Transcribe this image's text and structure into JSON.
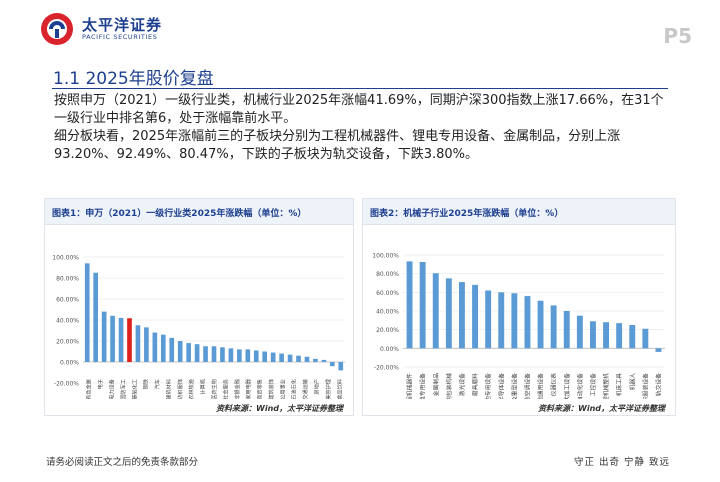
{
  "header": {
    "company_cn": "太平洋证券",
    "company_en": "PACIFIC SECURITIES",
    "page_number": "P5",
    "brand_color": "#1d3f8f",
    "accent_color": "#d9232d"
  },
  "section": {
    "title": "1.1 2025年股价复盘"
  },
  "paragraphs": {
    "p1": "按照申万（2021）一级行业类，机械行业2025年涨幅41.69%，同期沪深300指数上涨17.66%，在31个一级行业中排名第6，处于涨幅靠前水平。",
    "p2": "细分板块看，2025年涨幅前三的子板块分别为工程机械器件、锂电专用设备、金属制品，分别上涨93.20%、92.49%、80.47%，下跌的子板块为轨交设备，下跌3.80%。"
  },
  "figure1": {
    "title": "图表1：申万（2021）一级行业类2025年涨跌幅（单位：%）",
    "source": "资料来源：Wind，太平洋证券整理"
  },
  "figure2": {
    "title": "图表2：机械子行业2025年涨跌幅（单位：%）",
    "source": "资料来源：Wind，太平洋证券整理"
  },
  "chart_data": [
    {
      "type": "bar",
      "title": "图表1：申万（2021）一级行业类2025年涨跌幅（单位：%）",
      "ylim": [
        -20,
        100
      ],
      "yticks": [
        "100.00%",
        "80.00%",
        "60.00%",
        "40.00%",
        "20.00%",
        "0.00%",
        "-20.00%"
      ],
      "ytick_values": [
        100,
        80,
        60,
        40,
        20,
        0,
        -20
      ],
      "categories": [
        "有色金属",
        "通信",
        "电子",
        "综合",
        "电力设备",
        "机械设备",
        "国防军工",
        "基础化工",
        "轻工制造",
        "钢铁",
        "传媒",
        "汽车",
        "建筑材料",
        "环保",
        "纺织服饰",
        "农林牧渔",
        "计算机",
        "非银金融",
        "社会服务",
        "医药生物",
        "建筑装饰",
        "家用电器",
        "商贸零售",
        "公用事业",
        "银行",
        "交通运输",
        "石油石化",
        "房地产",
        "美容护理",
        "煤炭",
        "食品饮料"
      ],
      "visible_labels": [
        "有色金属",
        "电子",
        "电力设备",
        "国防军工",
        "基础化工",
        "钢铁",
        "汽车",
        "建筑材料",
        "纺织服饰",
        "农林牧渔",
        "计算机",
        "医药生物",
        "社会服务",
        "非银金融",
        "家用电器",
        "商贸零售",
        "建筑装饰",
        "公用事业",
        "石油石化",
        "交通运输",
        "房地产",
        "美容护理",
        "食品饮料"
      ],
      "values": [
        94,
        85,
        48,
        44,
        42,
        41.69,
        35,
        33,
        28,
        26,
        23,
        20,
        18,
        17,
        15,
        15,
        14,
        13,
        12,
        12,
        11,
        10,
        9,
        8,
        7,
        6,
        5,
        3,
        2,
        -4,
        -8
      ],
      "highlight_index": 5,
      "bar_color": "#5b9bd5",
      "highlight_color": "#e0201b"
    },
    {
      "type": "bar",
      "title": "图表2：机械子行业2025年涨跌幅（单位：%）",
      "ylim": [
        -20,
        100
      ],
      "yticks": [
        "100.00%",
        "80.00%",
        "60.00%",
        "40.00%",
        "20.00%",
        "0.00%",
        "-20.00%"
      ],
      "ytick_values": [
        100,
        80,
        60,
        40,
        20,
        0,
        -20
      ],
      "categories": [
        "工程机械器件",
        "锂电专用设备",
        "金属制品",
        "印刷包装机械",
        "激光设备",
        "磨具磨料",
        "其他专用设备",
        "半导体设备",
        "能源及重型设备",
        "制冷空调设备",
        "其他通用设备",
        "仪器仪表",
        "光伏加工设备",
        "其他自动化设备",
        "工控设备",
        "工程机械整机",
        "机床工具",
        "机器人",
        "纺织服装设备",
        "轨交设备"
      ],
      "values": [
        93.2,
        92.49,
        80.47,
        75,
        71,
        68,
        62,
        60,
        59,
        56,
        51,
        46,
        40,
        35,
        29,
        28,
        27,
        25,
        21,
        -3.8
      ],
      "bar_color": "#5b9bd5"
    }
  ],
  "footer": {
    "disclaimer": "请务必阅读正文之后的免责条款部分",
    "slogan": "守正 出奇 宁静 致远"
  }
}
